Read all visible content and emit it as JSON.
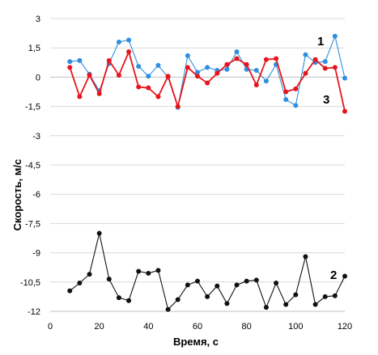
{
  "chart_data": {
    "type": "line",
    "title": "",
    "xlabel": "Время, с",
    "ylabel": "Скорость, м/с",
    "xlim": [
      0,
      120
    ],
    "ylim": [
      -12,
      3
    ],
    "xticks": [
      0,
      20,
      40,
      60,
      80,
      100,
      120
    ],
    "xtick_labels": [
      "0",
      "20",
      "40",
      "60",
      "80",
      "100",
      "120"
    ],
    "yticks": [
      3,
      1.5,
      0,
      -1.5,
      -3,
      -4.5,
      -6,
      -7.5,
      -9,
      -10.5,
      -12
    ],
    "ytick_labels": [
      "3",
      "1,5",
      "0",
      "-1,5",
      "-3",
      "-4,5",
      "-6",
      "-7,5",
      "-9",
      "-10,5",
      "-12"
    ],
    "grid": "horizontal",
    "legend": "none",
    "series": [
      {
        "name": "1",
        "color": "#2e8fe0",
        "x": [
          8,
          12,
          16,
          20,
          24,
          28,
          32,
          36,
          40,
          44,
          48,
          52,
          56,
          60,
          64,
          68,
          72,
          76,
          80,
          84,
          88,
          92,
          96,
          100,
          104,
          108,
          112,
          116,
          120
        ],
        "y": [
          0.8,
          0.85,
          0.15,
          -0.7,
          0.7,
          1.8,
          1.9,
          0.55,
          0.05,
          0.6,
          0.0,
          -1.55,
          1.1,
          0.25,
          0.5,
          0.35,
          0.4,
          1.3,
          0.4,
          0.35,
          -0.2,
          0.65,
          -1.15,
          -1.45,
          1.15,
          0.75,
          0.8,
          2.1,
          -0.05
        ]
      },
      {
        "name": "3",
        "color": "#e8141c",
        "x": [
          8,
          12,
          16,
          20,
          24,
          28,
          32,
          36,
          40,
          44,
          48,
          52,
          56,
          60,
          64,
          68,
          72,
          76,
          80,
          84,
          88,
          92,
          96,
          100,
          104,
          108,
          112,
          116,
          120
        ],
        "y": [
          0.5,
          -1.0,
          0.1,
          -0.85,
          0.85,
          0.1,
          1.3,
          -0.5,
          -0.55,
          -1.0,
          0.05,
          -1.5,
          0.5,
          0.05,
          -0.3,
          0.2,
          0.65,
          0.95,
          0.65,
          -0.4,
          0.9,
          0.95,
          -0.75,
          -0.6,
          0.2,
          0.9,
          0.45,
          0.5,
          -1.75
        ]
      },
      {
        "name": "2",
        "color": "#111111",
        "x": [
          8,
          12,
          16,
          20,
          24,
          28,
          32,
          36,
          40,
          44,
          48,
          52,
          56,
          60,
          64,
          68,
          72,
          76,
          80,
          84,
          88,
          92,
          96,
          100,
          104,
          108,
          112,
          116,
          120
        ],
        "y": [
          -10.95,
          -10.55,
          -10.1,
          -8.0,
          -10.35,
          -11.3,
          -11.45,
          -9.95,
          -10.05,
          -9.9,
          -11.9,
          -11.4,
          -10.65,
          -10.45,
          -11.25,
          -10.7,
          -11.6,
          -10.65,
          -10.45,
          -10.4,
          -11.8,
          -10.55,
          -11.65,
          -11.15,
          -9.2,
          -11.65,
          -11.25,
          -11.2,
          -10.2
        ]
      }
    ],
    "annotations": [
      {
        "text": "1",
        "series": "1"
      },
      {
        "text": "3",
        "series": "3"
      },
      {
        "text": "2",
        "series": "2"
      }
    ]
  }
}
